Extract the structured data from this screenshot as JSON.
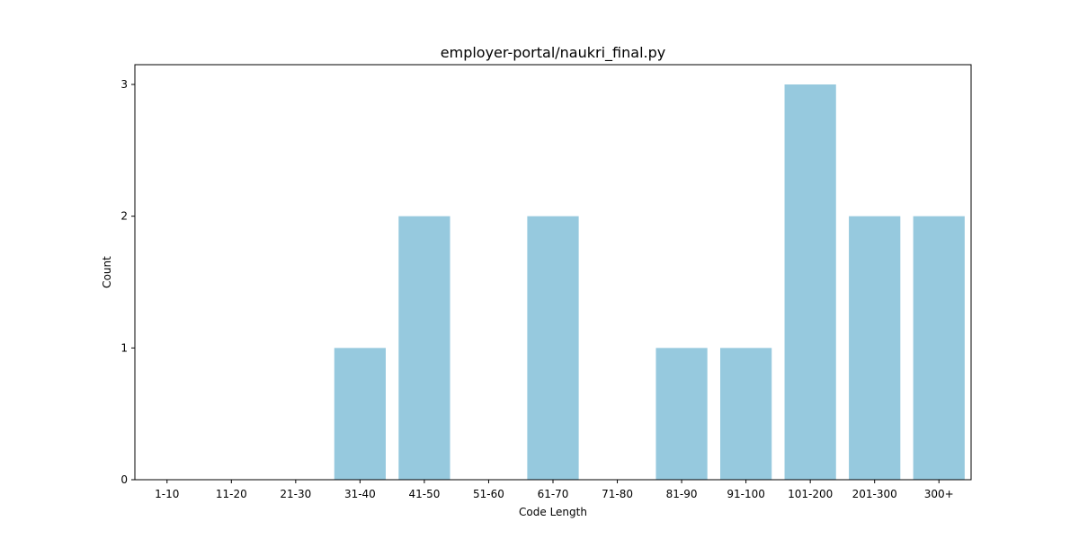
{
  "chart_data": {
    "type": "bar",
    "title": "employer-portal/naukri_final.py",
    "xlabel": "Code Length",
    "ylabel": "Count",
    "categories": [
      "1-10",
      "11-20",
      "21-30",
      "31-40",
      "41-50",
      "51-60",
      "61-70",
      "71-80",
      "81-90",
      "91-100",
      "101-200",
      "201-300",
      "300+"
    ],
    "values": [
      0,
      0,
      0,
      1,
      2,
      0,
      2,
      0,
      1,
      1,
      3,
      2,
      2
    ],
    "ylim": [
      0,
      3.15
    ],
    "yticks": [
      0,
      1,
      2,
      3
    ],
    "bar_color": "#96c9de",
    "grid": false,
    "legend": "none"
  }
}
